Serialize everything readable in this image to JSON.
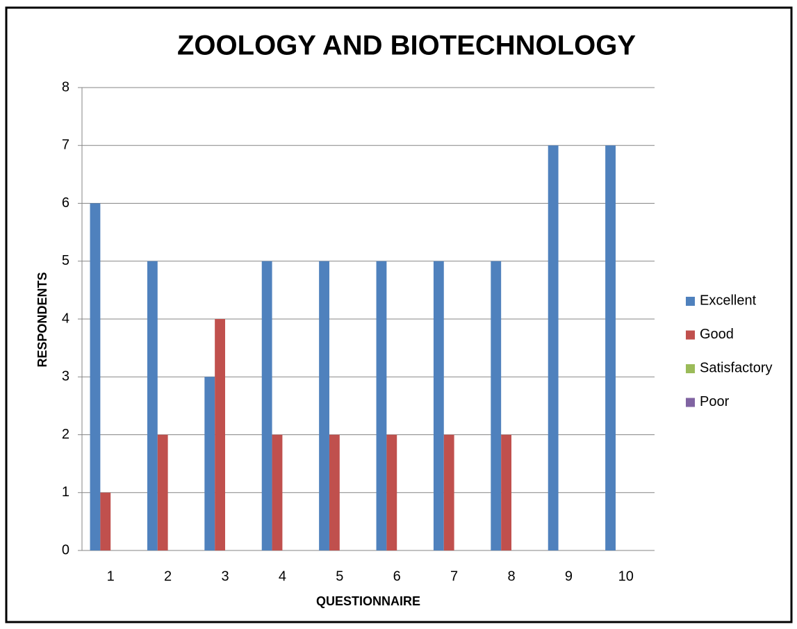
{
  "chart_data": {
    "type": "bar",
    "title": "ZOOLOGY AND BIOTECHNOLOGY",
    "x_label": "QUESTIONNAIRE",
    "y_label": "RESPONDENTS",
    "categories": [
      "1",
      "2",
      "3",
      "4",
      "5",
      "6",
      "7",
      "8",
      "9",
      "10"
    ],
    "series": [
      {
        "name": "Excellent",
        "color": "#4f81bd",
        "values": [
          6,
          5,
          3,
          5,
          5,
          5,
          5,
          5,
          7,
          7
        ]
      },
      {
        "name": "Good",
        "color": "#c0504d",
        "values": [
          1,
          2,
          4,
          2,
          2,
          2,
          2,
          2,
          0,
          0
        ]
      },
      {
        "name": "Satisfactory",
        "color": "#9bbb59",
        "values": [
          0,
          0,
          0,
          0,
          0,
          0,
          0,
          0,
          0,
          0
        ]
      },
      {
        "name": "Poor",
        "color": "#8064a2",
        "values": [
          0,
          0,
          0,
          0,
          0,
          0,
          0,
          0,
          0,
          0
        ]
      }
    ],
    "ylim": [
      0,
      8
    ],
    "yticks": [
      0,
      1,
      2,
      3,
      4,
      5,
      6,
      7,
      8
    ],
    "grid": true,
    "legend": "right"
  }
}
